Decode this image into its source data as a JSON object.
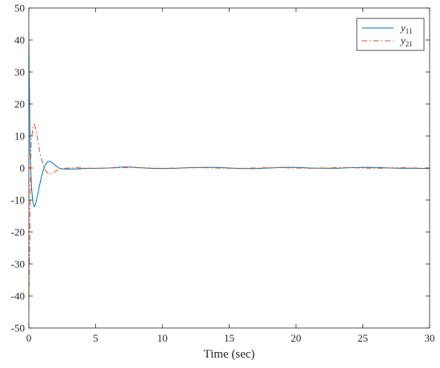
{
  "chart_data": {
    "type": "line",
    "title": "",
    "xlabel": "Time (sec)",
    "ylabel": "",
    "xlim": [
      0,
      30
    ],
    "ylim": [
      -50,
      50
    ],
    "x_ticks": [
      "0",
      "5",
      "10",
      "15",
      "20",
      "25",
      "30"
    ],
    "y_ticks": [
      "50",
      "40",
      "30",
      "20",
      "10",
      "0",
      "-10",
      "-20",
      "-30",
      "-40",
      "-50"
    ],
    "grid": false,
    "legend_position": "top-right",
    "series": [
      {
        "name": "y11",
        "name_base": "y",
        "name_sub": "11",
        "color": "#0072BD",
        "dash": "solid",
        "x": [
          0,
          0.05,
          0.1,
          0.2,
          0.3,
          0.4,
          0.5,
          0.6,
          0.8,
          1.0,
          1.2,
          1.4,
          1.6,
          1.8,
          2.0,
          2.3,
          2.6,
          3,
          3.5,
          4,
          5,
          6,
          7,
          7.5,
          8,
          9,
          10,
          11,
          12,
          13,
          14,
          15,
          16,
          17,
          18,
          19,
          20,
          21,
          22,
          23,
          24,
          25,
          26,
          27,
          28,
          29,
          30
        ],
        "values": [
          43,
          25,
          5,
          -6,
          -10.5,
          -12.1,
          -11.5,
          -9.5,
          -5.5,
          -1.8,
          0.8,
          2.0,
          2.1,
          1.5,
          0.7,
          -0.1,
          -0.3,
          -0.3,
          -0.3,
          -0.2,
          -0.1,
          0.0,
          0.3,
          0.3,
          0.2,
          -0.1,
          -0.2,
          -0.1,
          0.1,
          0.2,
          0.2,
          0.0,
          -0.2,
          -0.2,
          0.0,
          0.2,
          0.2,
          0.0,
          -0.1,
          -0.1,
          0.1,
          0.2,
          0.2,
          0.0,
          -0.1,
          -0.1,
          -0.2
        ]
      },
      {
        "name": "y21",
        "name_base": "y",
        "name_sub": "21",
        "color": "#D95319",
        "dash": "dashdot",
        "x": [
          0,
          0.05,
          0.1,
          0.15,
          0.2,
          0.3,
          0.4,
          0.5,
          0.6,
          0.7,
          0.8,
          1.0,
          1.2,
          1.4,
          1.6,
          1.8,
          2.0,
          2.3,
          2.6,
          3,
          3.5,
          4,
          5,
          6,
          7,
          8,
          9,
          10,
          11,
          12,
          13,
          14,
          15,
          16,
          17,
          18,
          19,
          20,
          21,
          22,
          23,
          24,
          25,
          26,
          27,
          28,
          29,
          30
        ],
        "values": [
          -48,
          -30,
          -10,
          3,
          9,
          12.5,
          13.6,
          12.8,
          10.5,
          8,
          5.5,
          1.8,
          -0.5,
          -1.6,
          -1.9,
          -1.6,
          -1.0,
          -0.4,
          -0.1,
          0.0,
          0.1,
          0.0,
          -0.1,
          0.0,
          0.1,
          0.1,
          0.0,
          -0.1,
          0.0,
          0.1,
          0.1,
          0.0,
          -0.1,
          -0.1,
          0.0,
          0.1,
          0.1,
          0.0,
          -0.1,
          0.0,
          0.1,
          0.1,
          0.0,
          -0.1,
          0.0,
          0.1,
          0.0,
          -0.1
        ]
      }
    ]
  }
}
